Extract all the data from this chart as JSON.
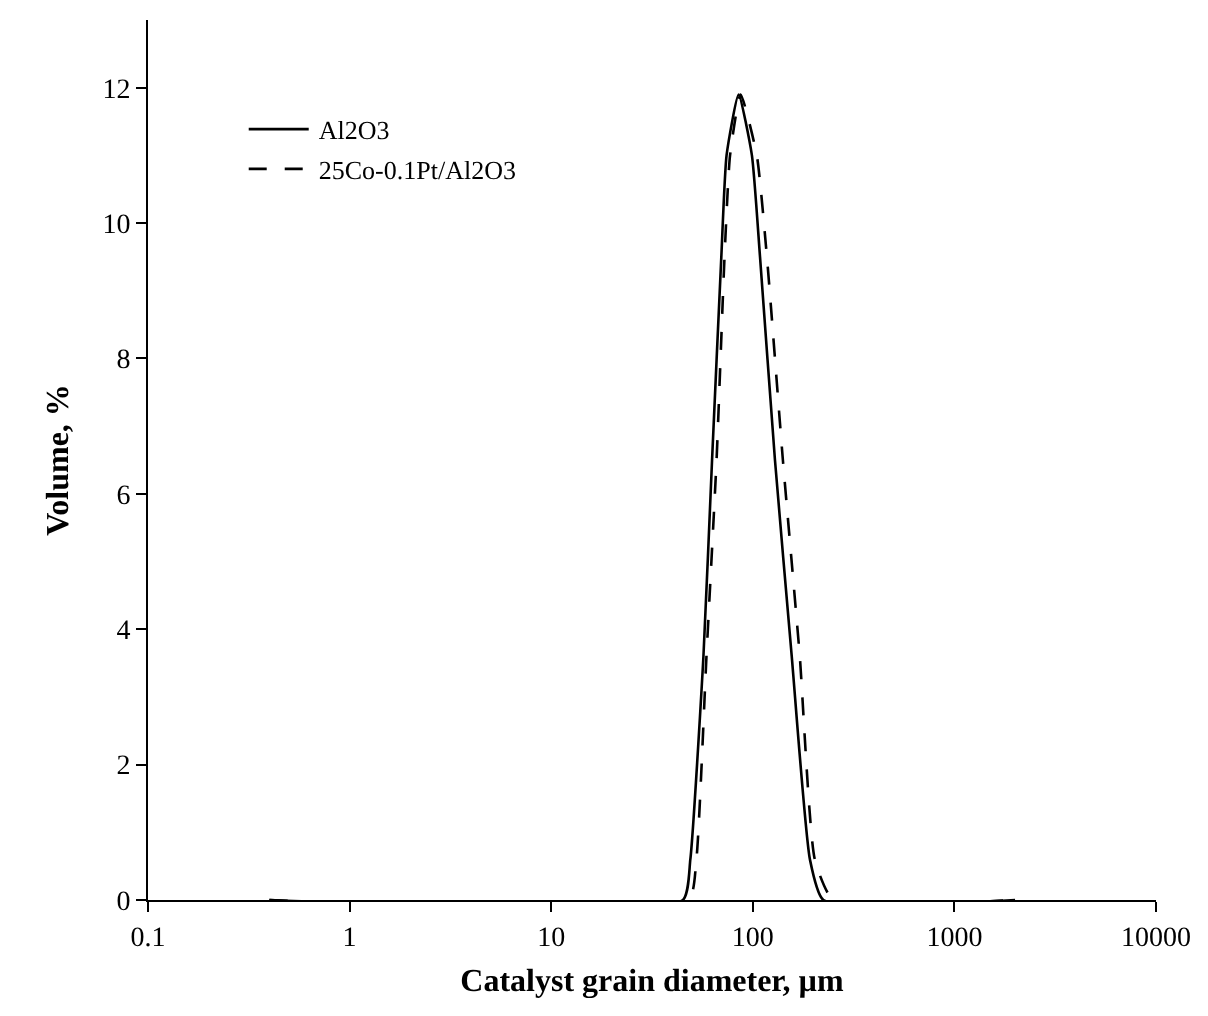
{
  "chart_data": {
    "type": "line",
    "xlabel": "Catalyst grain diameter, µm",
    "ylabel": "Volume, %",
    "log": "x",
    "xlim": [
      0.1,
      10000
    ],
    "xticks": [
      0.1,
      1,
      10,
      100,
      1000,
      10000
    ],
    "ylim": [
      0,
      13
    ],
    "yticks": [
      0,
      2,
      4,
      6,
      8,
      10,
      12
    ],
    "grid": false,
    "legend": "top left",
    "marker": "none",
    "series": [
      {
        "name": "Al2O3",
        "color": "#000000",
        "line_style": "solid",
        "x": [
          0.4,
          45,
          49,
          56.9,
          62.8,
          69.8,
          74.1,
          85,
          99,
          108.6,
          128.8,
          156,
          192,
          224,
          2000
        ],
        "values": [
          0,
          0,
          0.6,
          3.6,
          6.5,
          9.5,
          11.0,
          11.9,
          11.0,
          9.5,
          6.5,
          3.6,
          0.6,
          0,
          0
        ]
      },
      {
        "name": "25Co-0.1Pt/Al2O3",
        "color": "#000000",
        "line_style": "dashed",
        "x": [
          0.4,
          48,
          52.5,
          58.9,
          66.1,
          72.4,
          77.1,
          87,
          104.7,
          117.5,
          141,
          171,
          203,
          251,
          2000
        ],
        "values": [
          0,
          0,
          0.6,
          3.6,
          6.5,
          9.5,
          11.0,
          11.9,
          11.0,
          9.5,
          6.5,
          3.6,
          0.6,
          0,
          0
        ]
      }
    ]
  }
}
